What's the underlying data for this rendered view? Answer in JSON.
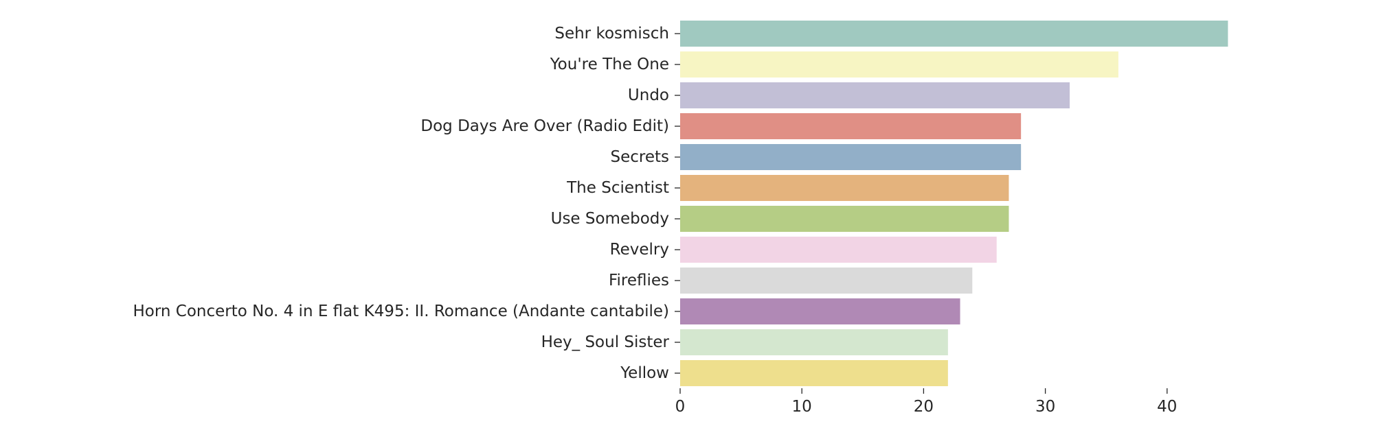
{
  "chart_data": {
    "type": "bar",
    "orientation": "horizontal",
    "categories": [
      "Sehr kosmisch",
      "You're The One",
      "Undo",
      "Dog Days Are Over (Radio Edit)",
      "Secrets",
      "The Scientist",
      "Use Somebody",
      "Revelry",
      "Fireflies",
      "Horn Concerto No. 4 in E flat K495: II. Romance (Andante cantabile)",
      "Hey_ Soul Sister",
      "Yellow"
    ],
    "values": [
      45,
      36,
      32,
      28,
      28,
      27,
      27,
      26,
      24,
      23,
      22,
      22
    ],
    "colors": [
      "#a0c9c0",
      "#f7f5c3",
      "#c2bfd6",
      "#e08f85",
      "#92afc8",
      "#e4b37d",
      "#b5cd85",
      "#f2d4e5",
      "#dadada",
      "#b089b5",
      "#d4e7cf",
      "#eedf8d"
    ],
    "xticks": [
      0,
      10,
      20,
      30,
      40
    ],
    "xlim": [
      0,
      50
    ],
    "title": "",
    "xlabel": "",
    "ylabel": "",
    "grid": false,
    "legend": "none"
  }
}
